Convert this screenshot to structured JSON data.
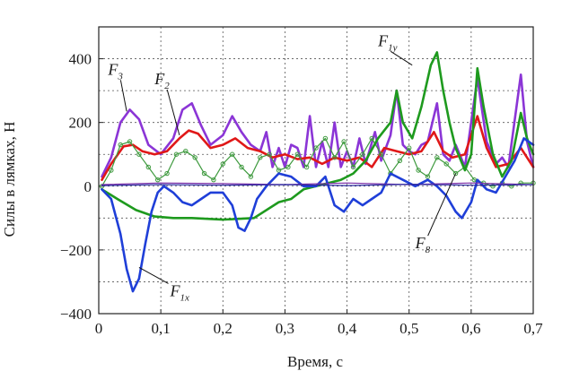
{
  "chart_data": {
    "type": "line",
    "xlabel": "Время, с",
    "ylabel": "Силы в лямках, Н",
    "xlim": [
      0,
      0.7
    ],
    "ylim": [
      -400,
      500
    ],
    "grid": true,
    "x_ticks": [
      0,
      0.1,
      0.2,
      0.3,
      0.4,
      0.5,
      0.6,
      0.7
    ],
    "x_tick_labels": [
      "0",
      "0,1",
      "0,2",
      "0,3",
      "0,4",
      "0,5",
      "0,6",
      "0,7"
    ],
    "y_ticks": [
      -400,
      -200,
      0,
      200,
      400
    ],
    "y_tick_labels": [
      "−400",
      "−200",
      "0",
      "200",
      "400"
    ],
    "series": [
      {
        "key": "F3",
        "color": "#8b35d6",
        "points": [
          [
            0.005,
            30
          ],
          [
            0.02,
            90
          ],
          [
            0.035,
            200
          ],
          [
            0.05,
            240
          ],
          [
            0.065,
            210
          ],
          [
            0.08,
            130
          ],
          [
            0.1,
            100
          ],
          [
            0.12,
            150
          ],
          [
            0.135,
            240
          ],
          [
            0.15,
            260
          ],
          [
            0.165,
            190
          ],
          [
            0.18,
            130
          ],
          [
            0.2,
            160
          ],
          [
            0.215,
            220
          ],
          [
            0.23,
            170
          ],
          [
            0.245,
            130
          ],
          [
            0.26,
            110
          ],
          [
            0.27,
            170
          ],
          [
            0.28,
            60
          ],
          [
            0.29,
            120
          ],
          [
            0.3,
            60
          ],
          [
            0.31,
            130
          ],
          [
            0.32,
            120
          ],
          [
            0.33,
            60
          ],
          [
            0.34,
            220
          ],
          [
            0.35,
            60
          ],
          [
            0.36,
            140
          ],
          [
            0.37,
            60
          ],
          [
            0.38,
            200
          ],
          [
            0.39,
            60
          ],
          [
            0.4,
            110
          ],
          [
            0.41,
            60
          ],
          [
            0.42,
            150
          ],
          [
            0.43,
            70
          ],
          [
            0.445,
            170
          ],
          [
            0.455,
            80
          ],
          [
            0.47,
            160
          ],
          [
            0.48,
            300
          ],
          [
            0.49,
            130
          ],
          [
            0.5,
            110
          ],
          [
            0.51,
            100
          ],
          [
            0.52,
            130
          ],
          [
            0.53,
            140
          ],
          [
            0.545,
            260
          ],
          [
            0.555,
            100
          ],
          [
            0.565,
            80
          ],
          [
            0.575,
            130
          ],
          [
            0.59,
            60
          ],
          [
            0.61,
            340
          ],
          [
            0.625,
            140
          ],
          [
            0.64,
            70
          ],
          [
            0.65,
            90
          ],
          [
            0.66,
            60
          ],
          [
            0.68,
            350
          ],
          [
            0.69,
            140
          ],
          [
            0.7,
            60
          ]
        ]
      },
      {
        "key": "F2",
        "color": "#e01818",
        "points": [
          [
            0.005,
            20
          ],
          [
            0.02,
            70
          ],
          [
            0.04,
            125
          ],
          [
            0.055,
            130
          ],
          [
            0.07,
            110
          ],
          [
            0.09,
            100
          ],
          [
            0.11,
            110
          ],
          [
            0.13,
            150
          ],
          [
            0.145,
            175
          ],
          [
            0.16,
            165
          ],
          [
            0.18,
            120
          ],
          [
            0.2,
            130
          ],
          [
            0.22,
            150
          ],
          [
            0.24,
            120
          ],
          [
            0.26,
            110
          ],
          [
            0.28,
            90
          ],
          [
            0.3,
            100
          ],
          [
            0.32,
            85
          ],
          [
            0.34,
            90
          ],
          [
            0.36,
            70
          ],
          [
            0.38,
            90
          ],
          [
            0.4,
            80
          ],
          [
            0.42,
            90
          ],
          [
            0.44,
            60
          ],
          [
            0.46,
            120
          ],
          [
            0.48,
            110
          ],
          [
            0.5,
            100
          ],
          [
            0.52,
            110
          ],
          [
            0.54,
            170
          ],
          [
            0.555,
            110
          ],
          [
            0.57,
            90
          ],
          [
            0.59,
            100
          ],
          [
            0.61,
            220
          ],
          [
            0.625,
            120
          ],
          [
            0.64,
            60
          ],
          [
            0.66,
            70
          ],
          [
            0.68,
            120
          ],
          [
            0.7,
            60
          ]
        ]
      },
      {
        "key": "F8",
        "color": "#3f9a3f",
        "marker": "circle",
        "points": [
          [
            0.005,
            0
          ],
          [
            0.02,
            50
          ],
          [
            0.035,
            130
          ],
          [
            0.05,
            140
          ],
          [
            0.065,
            100
          ],
          [
            0.08,
            60
          ],
          [
            0.095,
            20
          ],
          [
            0.11,
            40
          ],
          [
            0.125,
            100
          ],
          [
            0.14,
            110
          ],
          [
            0.155,
            90
          ],
          [
            0.17,
            40
          ],
          [
            0.185,
            20
          ],
          [
            0.2,
            70
          ],
          [
            0.215,
            100
          ],
          [
            0.23,
            60
          ],
          [
            0.245,
            30
          ],
          [
            0.26,
            90
          ],
          [
            0.275,
            100
          ],
          [
            0.29,
            50
          ],
          [
            0.305,
            60
          ],
          [
            0.32,
            100
          ],
          [
            0.335,
            60
          ],
          [
            0.35,
            120
          ],
          [
            0.365,
            150
          ],
          [
            0.38,
            90
          ],
          [
            0.395,
            140
          ],
          [
            0.41,
            60
          ],
          [
            0.425,
            100
          ],
          [
            0.44,
            150
          ],
          [
            0.455,
            100
          ],
          [
            0.47,
            40
          ],
          [
            0.485,
            80
          ],
          [
            0.5,
            120
          ],
          [
            0.515,
            50
          ],
          [
            0.53,
            30
          ],
          [
            0.545,
            90
          ],
          [
            0.56,
            70
          ],
          [
            0.575,
            40
          ],
          [
            0.59,
            60
          ],
          [
            0.605,
            20
          ],
          [
            0.62,
            10
          ],
          [
            0.635,
            0
          ],
          [
            0.65,
            10
          ],
          [
            0.665,
            0
          ],
          [
            0.68,
            10
          ],
          [
            0.7,
            10
          ]
        ]
      },
      {
        "key": "F1y",
        "color": "#1e9a1e",
        "points": [
          [
            0.005,
            -10
          ],
          [
            0.03,
            -40
          ],
          [
            0.06,
            -75
          ],
          [
            0.09,
            -95
          ],
          [
            0.12,
            -100
          ],
          [
            0.15,
            -100
          ],
          [
            0.2,
            -105
          ],
          [
            0.25,
            -100
          ],
          [
            0.29,
            -50
          ],
          [
            0.3,
            -45
          ],
          [
            0.31,
            -40
          ],
          [
            0.33,
            -10
          ],
          [
            0.35,
            0
          ],
          [
            0.37,
            10
          ],
          [
            0.39,
            20
          ],
          [
            0.41,
            40
          ],
          [
            0.43,
            80
          ],
          [
            0.45,
            150
          ],
          [
            0.47,
            200
          ],
          [
            0.48,
            300
          ],
          [
            0.49,
            200
          ],
          [
            0.505,
            150
          ],
          [
            0.52,
            250
          ],
          [
            0.535,
            380
          ],
          [
            0.545,
            420
          ],
          [
            0.555,
            300
          ],
          [
            0.565,
            200
          ],
          [
            0.575,
            120
          ],
          [
            0.59,
            50
          ],
          [
            0.6,
            100
          ],
          [
            0.61,
            370
          ],
          [
            0.62,
            250
          ],
          [
            0.635,
            100
          ],
          [
            0.65,
            30
          ],
          [
            0.665,
            80
          ],
          [
            0.68,
            230
          ],
          [
            0.69,
            150
          ],
          [
            0.7,
            100
          ]
        ]
      },
      {
        "key": "F1x",
        "color": "#1f3fd8",
        "points": [
          [
            0.005,
            -10
          ],
          [
            0.02,
            -40
          ],
          [
            0.035,
            -150
          ],
          [
            0.045,
            -260
          ],
          [
            0.055,
            -330
          ],
          [
            0.065,
            -290
          ],
          [
            0.075,
            -180
          ],
          [
            0.085,
            -80
          ],
          [
            0.095,
            -20
          ],
          [
            0.105,
            0
          ],
          [
            0.12,
            -20
          ],
          [
            0.135,
            -50
          ],
          [
            0.15,
            -60
          ],
          [
            0.165,
            -40
          ],
          [
            0.18,
            -20
          ],
          [
            0.2,
            -20
          ],
          [
            0.215,
            -60
          ],
          [
            0.225,
            -130
          ],
          [
            0.235,
            -140
          ],
          [
            0.245,
            -100
          ],
          [
            0.255,
            -40
          ],
          [
            0.27,
            0
          ],
          [
            0.29,
            40
          ],
          [
            0.31,
            30
          ],
          [
            0.33,
            0
          ],
          [
            0.35,
            0
          ],
          [
            0.365,
            30
          ],
          [
            0.38,
            -60
          ],
          [
            0.395,
            -80
          ],
          [
            0.41,
            -40
          ],
          [
            0.425,
            -60
          ],
          [
            0.44,
            -40
          ],
          [
            0.455,
            -20
          ],
          [
            0.47,
            40
          ],
          [
            0.49,
            20
          ],
          [
            0.51,
            0
          ],
          [
            0.53,
            20
          ],
          [
            0.545,
            0
          ],
          [
            0.56,
            -30
          ],
          [
            0.575,
            -80
          ],
          [
            0.585,
            -100
          ],
          [
            0.6,
            -50
          ],
          [
            0.61,
            20
          ],
          [
            0.625,
            -10
          ],
          [
            0.64,
            -20
          ],
          [
            0.655,
            30
          ],
          [
            0.67,
            80
          ],
          [
            0.685,
            150
          ],
          [
            0.7,
            130
          ]
        ]
      },
      {
        "key": "F_extra_1",
        "color": "#7a2ea8",
        "points": [
          [
            0.005,
            5
          ],
          [
            0.1,
            10
          ],
          [
            0.2,
            8
          ],
          [
            0.3,
            5
          ],
          [
            0.4,
            10
          ],
          [
            0.5,
            5
          ],
          [
            0.6,
            10
          ],
          [
            0.7,
            5
          ]
        ]
      },
      {
        "key": "F_extra_2",
        "color": "#2a2aa0",
        "points": [
          [
            0.005,
            2
          ],
          [
            0.1,
            5
          ],
          [
            0.2,
            3
          ],
          [
            0.3,
            5
          ],
          [
            0.4,
            2
          ],
          [
            0.5,
            6
          ],
          [
            0.6,
            3
          ],
          [
            0.7,
            5
          ]
        ]
      }
    ],
    "annotations": [
      {
        "main": "F",
        "sub": "3",
        "x": 0.015,
        "y": 350,
        "to": [
          0.045,
          235
        ]
      },
      {
        "main": "F",
        "sub": "2",
        "x": 0.09,
        "y": 320,
        "to": [
          0.13,
          160
        ]
      },
      {
        "main": "F",
        "sub": "1y",
        "x": 0.45,
        "y": 440,
        "to": [
          0.505,
          380
        ]
      },
      {
        "main": "F",
        "sub": "8",
        "x": 0.51,
        "y": -195,
        "to": [
          0.575,
          40
        ]
      },
      {
        "main": "F",
        "sub": "1x",
        "x": 0.115,
        "y": -345,
        "to": [
          0.065,
          -255
        ]
      }
    ]
  }
}
